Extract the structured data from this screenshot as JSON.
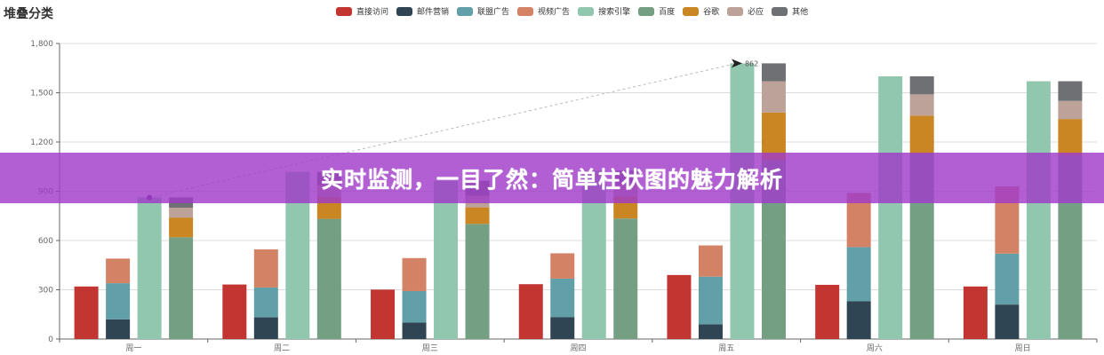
{
  "chart_title": "堆叠分类",
  "banner": {
    "text": "实时监测，一目了然：简单柱状图的魅力解析"
  },
  "legend": [
    {
      "name": "直接访问",
      "color": "#c23531"
    },
    {
      "name": "邮件营销",
      "color": "#2f4554"
    },
    {
      "name": "联盟广告",
      "color": "#61a0a8"
    },
    {
      "name": "视频广告",
      "color": "#d48265"
    },
    {
      "name": "搜索引擎",
      "color": "#91c7ae"
    },
    {
      "name": "百度",
      "color": "#749f83"
    },
    {
      "name": "谷歌",
      "color": "#ca8622"
    },
    {
      "name": "必应",
      "color": "#bda29a"
    },
    {
      "name": "其他",
      "color": "#6e7074"
    }
  ],
  "annotation": {
    "label": "862"
  },
  "chart_data": {
    "type": "bar",
    "title": "堆叠分类",
    "xlabel": "",
    "ylabel": "",
    "ylim": [
      0,
      1800
    ],
    "yticks": [
      0,
      300,
      600,
      900,
      1200,
      1500,
      1800
    ],
    "ytick_labels": [
      "0",
      "300",
      "600",
      "900",
      "1,200",
      "1,500",
      "1,800"
    ],
    "grid": true,
    "legend_position": "top",
    "categories": [
      "周一",
      "周二",
      "周三",
      "周四",
      "周五",
      "周六",
      "周日"
    ],
    "stacks": [
      {
        "stack": "直接访问",
        "series": [
          "直接访问"
        ]
      },
      {
        "stack": "广告",
        "series": [
          "邮件营销",
          "联盟广告",
          "视频广告"
        ]
      },
      {
        "stack": "搜索引擎",
        "series": [
          "搜索引擎"
        ]
      },
      {
        "stack": "搜索引擎细分",
        "series": [
          "百度",
          "谷歌",
          "必应",
          "其他"
        ]
      }
    ],
    "series": [
      {
        "name": "直接访问",
        "stack": 0,
        "color": "#c23531",
        "values": [
          320,
          332,
          301,
          334,
          390,
          330,
          320
        ]
      },
      {
        "name": "邮件营销",
        "stack": 1,
        "color": "#2f4554",
        "values": [
          120,
          132,
          101,
          134,
          90,
          230,
          210
        ]
      },
      {
        "name": "联盟广告",
        "stack": 1,
        "color": "#61a0a8",
        "values": [
          220,
          182,
          191,
          234,
          290,
          330,
          310
        ]
      },
      {
        "name": "视频广告",
        "stack": 1,
        "color": "#d48265",
        "values": [
          150,
          232,
          201,
          154,
          190,
          330,
          410
        ]
      },
      {
        "name": "搜索引擎",
        "stack": 2,
        "color": "#91c7ae",
        "values": [
          862,
          1018,
          964,
          1026,
          1679,
          1600,
          1570
        ]
      },
      {
        "name": "百度",
        "stack": 3,
        "color": "#749f83",
        "values": [
          620,
          732,
          701,
          734,
          1090,
          1130,
          1120
        ]
      },
      {
        "name": "谷歌",
        "stack": 3,
        "color": "#ca8622",
        "values": [
          120,
          132,
          101,
          134,
          290,
          230,
          220
        ]
      },
      {
        "name": "必应",
        "stack": 3,
        "color": "#bda29a",
        "values": [
          60,
          72,
          71,
          74,
          190,
          130,
          110
        ]
      },
      {
        "name": "其他",
        "stack": 3,
        "color": "#6e7074",
        "values": [
          62,
          82,
          91,
          84,
          109,
          110,
          120
        ]
      }
    ],
    "markLine": {
      "series": "搜索引擎",
      "from": [
        "周一",
        862
      ],
      "to": [
        "周五",
        1679
      ],
      "label": "862"
    }
  }
}
